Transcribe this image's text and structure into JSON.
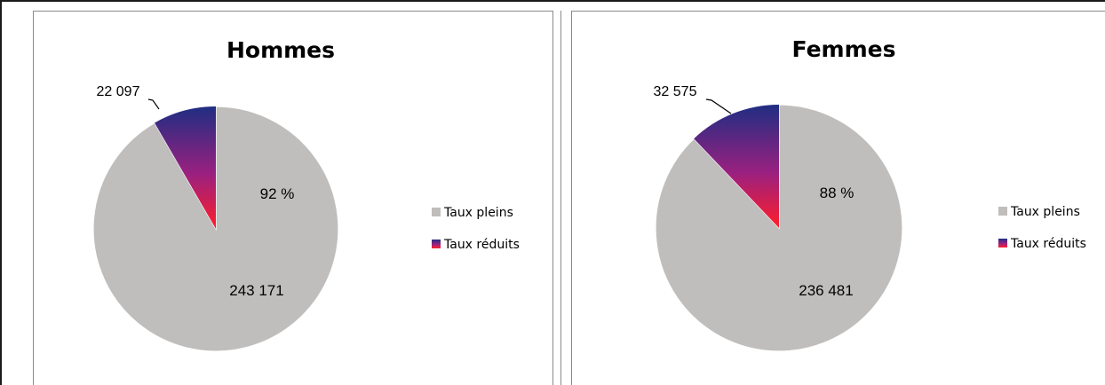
{
  "chart_data": [
    {
      "type": "pie",
      "title": "Hommes",
      "slices": [
        {
          "label": "Taux pleins",
          "value": 243171,
          "data_label": "243 171",
          "color": "#c0bebd"
        },
        {
          "label": "Taux réduits",
          "value": 22097,
          "data_label": "22 097",
          "color_top": "#1f2e82",
          "color_bottom": "#ff1e2a"
        }
      ],
      "percent_label": "92 %",
      "legend": [
        "Taux pleins",
        "Taux réduits"
      ],
      "legend_position": "right"
    },
    {
      "type": "pie",
      "title": "Femmes",
      "slices": [
        {
          "label": "Taux pleins",
          "value": 236481,
          "data_label": "236 481",
          "color": "#c0bebd"
        },
        {
          "label": "Taux réduits",
          "value": 32575,
          "data_label": "32 575",
          "color_top": "#1f2e82",
          "color_bottom": "#ff1e2a"
        }
      ],
      "percent_label": "88 %",
      "legend": [
        "Taux pleins",
        "Taux réduits"
      ],
      "legend_position": "right"
    }
  ]
}
